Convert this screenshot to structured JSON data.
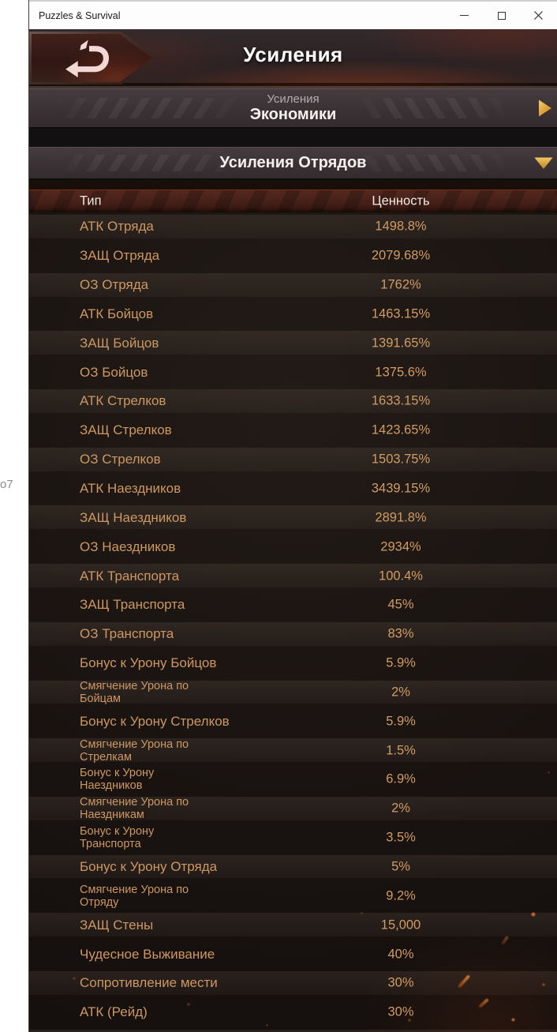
{
  "window": {
    "title": "Puzzles & Survival"
  },
  "desktop": {
    "partial_text": "o7"
  },
  "header": {
    "title": "Усиления"
  },
  "sections": [
    {
      "label_line1": "Усиления",
      "label_line2": "Экономики",
      "state": "collapsed"
    },
    {
      "label": "Усиления Отрядов",
      "state": "expanded"
    }
  ],
  "table": {
    "columns": [
      "Тип",
      "Ценность"
    ],
    "rows": [
      {
        "type": "АТК Отряда",
        "value": "1498.8%"
      },
      {
        "type": "ЗАЩ Отряда",
        "value": "2079.68%"
      },
      {
        "type": "ОЗ Отряда",
        "value": "1762%"
      },
      {
        "type": "АТК Бойцов",
        "value": "1463.15%"
      },
      {
        "type": "ЗАЩ Бойцов",
        "value": "1391.65%"
      },
      {
        "type": "ОЗ Бойцов",
        "value": "1375.6%"
      },
      {
        "type": "АТК Стрелков",
        "value": "1633.15%"
      },
      {
        "type": "ЗАЩ Стрелков",
        "value": "1423.65%"
      },
      {
        "type": "ОЗ Стрелков",
        "value": "1503.75%"
      },
      {
        "type": "АТК Наездников",
        "value": "3439.15%"
      },
      {
        "type": "ЗАЩ Наездников",
        "value": "2891.8%"
      },
      {
        "type": "ОЗ Наездников",
        "value": "2934%"
      },
      {
        "type": "АТК Транспорта",
        "value": "100.4%"
      },
      {
        "type": "ЗАЩ Транспорта",
        "value": "45%"
      },
      {
        "type": "ОЗ Транспорта",
        "value": "83%"
      },
      {
        "type": "Бонус к Урону Бойцов",
        "value": "5.9%"
      },
      {
        "type": "Смягчение Урона по\nБойцам",
        "value": "2%"
      },
      {
        "type": "Бонус к Урону Стрелков",
        "value": "5.9%"
      },
      {
        "type": "Смягчение Урона по\nСтрелкам",
        "value": "1.5%"
      },
      {
        "type": "Бонус к Урону\nНаездников",
        "value": "6.9%"
      },
      {
        "type": "Смягчение Урона по\nНаездникам",
        "value": "2%"
      },
      {
        "type": "Бонус к Урону\nТранспорта",
        "value": "3.5%"
      },
      {
        "type": "Бонус к Урону Отряда",
        "value": "5%"
      },
      {
        "type": "Смягчение Урона по\nОтряду",
        "value": "9.2%"
      },
      {
        "type": "ЗАЩ Стены",
        "value": "15,000"
      },
      {
        "type": "Чудесное Выживание",
        "value": "40%"
      },
      {
        "type": "Сопротивление мести",
        "value": "30%"
      },
      {
        "type": "АТК (Рейд)",
        "value": "30%"
      }
    ]
  },
  "colors": {
    "accent_gold": "#e2ac3a",
    "row_text": "#cd9763",
    "table_header_bg": "#46211a",
    "section_bar_bg": "#3a3134",
    "title_text": "#ffffff"
  }
}
